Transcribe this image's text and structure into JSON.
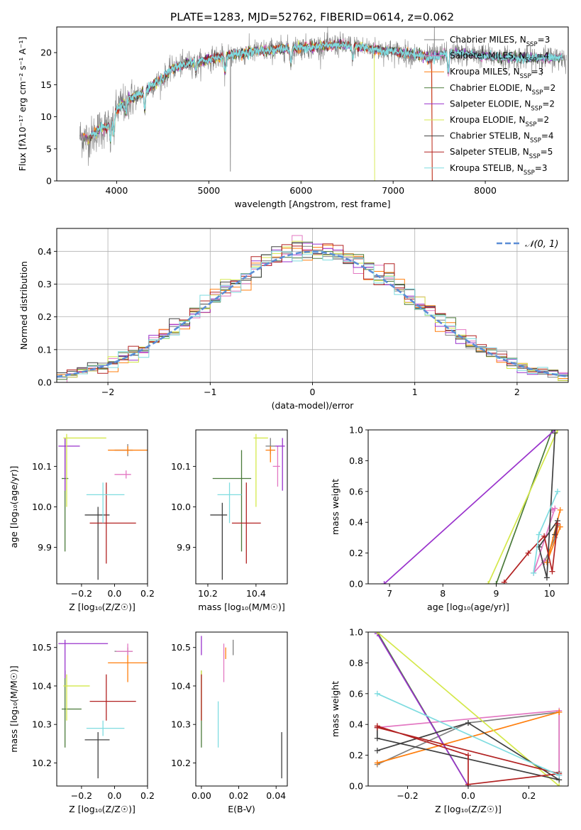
{
  "figure": {
    "title": "PLATE=1283, MJD=52762, FIBERID=0614, z=0.062"
  },
  "models": [
    {
      "lib": "Chabrier MILES",
      "nssp": "3",
      "color": "#808080"
    },
    {
      "lib": "Salpeter MILES",
      "nssp": "4",
      "color": "#e377c2"
    },
    {
      "lib": "Kroupa MILES",
      "nssp": "3",
      "color": "#ff7f0e"
    },
    {
      "lib": "Chabrier ELODIE",
      "nssp": "2",
      "color": "#4a7a3a"
    },
    {
      "lib": "Salpeter ELODIE",
      "nssp": "2",
      "color": "#9932cc"
    },
    {
      "lib": "Kroupa ELODIE",
      "nssp": "2",
      "color": "#d4e84a"
    },
    {
      "lib": "Chabrier STELIB",
      "nssp": "4",
      "color": "#404040"
    },
    {
      "lib": "Salpeter STELIB",
      "nssp": "5",
      "color": "#b22222"
    },
    {
      "lib": "Kroupa STELIB",
      "nssp": "3",
      "color": "#7fdce0"
    }
  ],
  "chart_data": [
    {
      "id": "spectrum",
      "type": "line",
      "xlabel": "wavelength [Angstrom, rest frame]",
      "ylabel": "Flux [fλ10⁻¹⁷ erg cm⁻² s⁻¹ A⁻¹]",
      "xlim": [
        3350,
        8900
      ],
      "ylim": [
        0,
        24
      ],
      "xticks": [
        "4000",
        "5000",
        "6000",
        "7000",
        "8000"
      ],
      "yticks": [
        "0",
        "5",
        "10",
        "15",
        "20"
      ],
      "grid": false,
      "legend": "right",
      "continuum": {
        "x": [
          3600,
          3700,
          3800,
          3900,
          4000,
          4100,
          4200,
          4300,
          4400,
          4500,
          4600,
          4700,
          4800,
          4900,
          5000,
          5200,
          5400,
          5600,
          5800,
          6000,
          6200,
          6400,
          6600,
          6800,
          7000,
          7200,
          7400,
          7600,
          7800,
          8000,
          8200,
          8400,
          8600,
          8800
        ],
        "y": [
          7,
          6.5,
          8,
          8.5,
          11,
          12.5,
          13,
          14,
          15,
          16,
          17.5,
          18,
          18.5,
          18.5,
          19,
          19.5,
          20,
          20.3,
          20.6,
          20.8,
          21,
          21.2,
          21,
          20.5,
          20.2,
          19.8,
          19.2,
          20,
          19.8,
          19.5,
          19.2,
          19.2,
          19.2,
          19.2
        ]
      }
    },
    {
      "id": "residuals",
      "type": "histogram",
      "xlabel": "(data-model)/error",
      "ylabel": "Normed distribution",
      "xlim": [
        -2.5,
        2.5
      ],
      "ylim": [
        0,
        0.47
      ],
      "xticks": [
        "−2",
        "−1",
        "0",
        "1",
        "2"
      ],
      "yticks": [
        "0.0",
        "0.1",
        "0.2",
        "0.3",
        "0.4"
      ],
      "grid": true,
      "legend": "top-right",
      "reference": {
        "label": "𝒩(0, 1)",
        "mean": 0,
        "sigma": 1
      }
    },
    {
      "id": "age-vs-z",
      "type": "errorbar",
      "xlabel": "Z [log₁₀(Z/Z☉)]",
      "ylabel": "age  [log₁₀(age/yr)]",
      "xlim": [
        -0.35,
        0.2
      ],
      "ylim": [
        9.81,
        10.19
      ],
      "xticks": [
        "−0.2",
        "0.0",
        "0.2"
      ],
      "yticks": [
        "9.9",
        "10.0",
        "10.1"
      ],
      "points": [
        {
          "x": 0.08,
          "y": 10.14,
          "xerr": [
            0.08,
            0.03
          ],
          "yerr": [
            0.015,
            0.015
          ]
        },
        {
          "x": 0.07,
          "y": 10.08,
          "xerr": [
            0.07,
            0.03
          ],
          "yerr": [
            0.01,
            0.01
          ]
        },
        {
          "x": 0.08,
          "y": 10.14,
          "xerr": [
            0.12,
            0.12
          ],
          "yerr": [
            0.01,
            0.01
          ]
        },
        {
          "x": -0.3,
          "y": 10.07,
          "xerr": [
            0.02,
            0.02
          ],
          "yerr": [
            0.18,
            0.1
          ]
        },
        {
          "x": -0.3,
          "y": 10.15,
          "xerr": [
            0.04,
            0.09
          ],
          "yerr": [
            0.11,
            0.02
          ]
        },
        {
          "x": -0.29,
          "y": 10.17,
          "xerr": [
            0.02,
            0.24
          ],
          "yerr": [
            0.17,
            0.01
          ]
        },
        {
          "x": -0.1,
          "y": 9.98,
          "xerr": [
            0.08,
            0.07
          ],
          "yerr": [
            0.16,
            0.02
          ]
        },
        {
          "x": -0.05,
          "y": 9.96,
          "xerr": [
            0.1,
            0.18
          ],
          "yerr": [
            0.1,
            0.1
          ]
        },
        {
          "x": -0.07,
          "y": 10.03,
          "xerr": [
            0.1,
            0.13
          ],
          "yerr": [
            0.07,
            0.03
          ]
        }
      ]
    },
    {
      "id": "age-vs-mass",
      "type": "errorbar",
      "xlabel": "mass [log₁₀(M/M☉)]",
      "ylabel": "",
      "xlim": [
        10.15,
        10.53
      ],
      "ylim": [
        9.81,
        10.19
      ],
      "xticks": [
        "10.2",
        "10.4"
      ],
      "yticks": [
        "9.9",
        "10.0",
        "10.1"
      ],
      "points": [
        {
          "x": 10.46,
          "y": 10.15,
          "xerr": [
            0.02,
            0.02
          ],
          "yerr": [
            0.02,
            0.02
          ]
        },
        {
          "x": 10.49,
          "y": 10.1,
          "xerr": [
            0.02,
            0.01
          ],
          "yerr": [
            0.05,
            0.05
          ]
        },
        {
          "x": 10.46,
          "y": 10.14,
          "xerr": [
            0.02,
            0.02
          ],
          "yerr": [
            0.03,
            0.01
          ]
        },
        {
          "x": 10.34,
          "y": 10.07,
          "xerr": [
            0.12,
            0.04
          ],
          "yerr": [
            0.18,
            0.07
          ]
        },
        {
          "x": 10.51,
          "y": 10.15,
          "xerr": [
            0.03,
            0.01
          ],
          "yerr": [
            0.11,
            0.02
          ]
        },
        {
          "x": 10.4,
          "y": 10.17,
          "xerr": [
            0.01,
            0.05
          ],
          "yerr": [
            0.17,
            0.01
          ]
        },
        {
          "x": 10.26,
          "y": 9.98,
          "xerr": [
            0.05,
            0.02
          ],
          "yerr": [
            0.16,
            0.03
          ]
        },
        {
          "x": 10.36,
          "y": 9.96,
          "xerr": [
            0.06,
            0.06
          ],
          "yerr": [
            0.1,
            0.1
          ]
        },
        {
          "x": 10.29,
          "y": 10.03,
          "xerr": [
            0.05,
            0.05
          ],
          "yerr": [
            0.07,
            0.03
          ]
        }
      ]
    },
    {
      "id": "weight-vs-age",
      "type": "line",
      "xlabel": "age  [log₁₀(age/yr)]",
      "ylabel": "mass weight",
      "xlim": [
        6.6,
        10.35
      ],
      "ylim": [
        0,
        1
      ],
      "xticks": [
        "7",
        "8",
        "9",
        "10"
      ],
      "yticks": [
        "0.0",
        "0.2",
        "0.4",
        "0.6",
        "0.8",
        "1.0"
      ],
      "series": [
        {
          "x": [
            10.15,
            10.1,
            9.9
          ],
          "y": [
            0.38,
            0.3,
            0.14
          ]
        },
        {
          "x": [
            9.9,
            9.7,
            10.1,
            10.05
          ],
          "y": [
            0.15,
            0.07,
            0.49,
            0.48
          ]
        },
        {
          "x": [
            10.2,
            9.95,
            10.2
          ],
          "y": [
            0.48,
            0.14,
            0.37
          ]
        },
        {
          "x": [
            10.05,
            9.0
          ],
          "y": [
            1.0,
            0.0
          ]
        },
        {
          "x": [
            10.1,
            6.9
          ],
          "y": [
            1.0,
            0.0
          ]
        },
        {
          "x": [
            10.15,
            8.85
          ],
          "y": [
            1.0,
            0.0
          ]
        },
        {
          "x": [
            10.1,
            9.95,
            9.8,
            10.15,
            10.1
          ],
          "y": [
            0.98,
            0.04,
            0.24,
            0.41,
            0.32
          ]
        },
        {
          "x": [
            9.15,
            9.6,
            9.9,
            10.05,
            10.15
          ],
          "y": [
            0.01,
            0.2,
            0.31,
            0.08,
            0.39
          ]
        },
        {
          "x": [
            9.7,
            9.8,
            10.15
          ],
          "y": [
            0.07,
            0.32,
            0.6
          ]
        }
      ]
    },
    {
      "id": "mass-vs-z",
      "type": "errorbar",
      "xlabel": "Z [log₁₀(Z/Z☉)]",
      "ylabel": "mass [log₁₀(M/M☉)]",
      "xlim": [
        -0.35,
        0.2
      ],
      "ylim": [
        10.14,
        10.54
      ],
      "xticks": [
        "−0.2",
        "0.0",
        "0.2"
      ],
      "yticks": [
        "10.2",
        "10.3",
        "10.4",
        "10.5"
      ],
      "points": [
        {
          "x": 0.08,
          "y": 10.49,
          "xerr": [
            0.08,
            0.03
          ],
          "yerr": [
            0.01,
            0.01
          ]
        },
        {
          "x": 0.08,
          "y": 10.49,
          "xerr": [
            0.07,
            0.03
          ],
          "yerr": [
            0.01,
            0.02
          ]
        },
        {
          "x": 0.08,
          "y": 10.46,
          "xerr": [
            0.12,
            0.12
          ],
          "yerr": [
            0.05,
            0.02
          ]
        },
        {
          "x": -0.3,
          "y": 10.34,
          "xerr": [
            0.02,
            0.1
          ],
          "yerr": [
            0.1,
            0.1
          ]
        },
        {
          "x": -0.3,
          "y": 10.51,
          "xerr": [
            0.04,
            0.26
          ],
          "yerr": [
            0.09,
            0.01
          ]
        },
        {
          "x": -0.29,
          "y": 10.4,
          "xerr": [
            0.02,
            0.14
          ],
          "yerr": [
            0.09,
            0.03
          ]
        },
        {
          "x": -0.1,
          "y": 10.26,
          "xerr": [
            0.08,
            0.07
          ],
          "yerr": [
            0.1,
            0.02
          ]
        },
        {
          "x": -0.05,
          "y": 10.36,
          "xerr": [
            0.1,
            0.18
          ],
          "yerr": [
            0.05,
            0.07
          ]
        },
        {
          "x": -0.07,
          "y": 10.29,
          "xerr": [
            0.1,
            0.13
          ],
          "yerr": [
            0.02,
            0.02
          ]
        }
      ]
    },
    {
      "id": "mass-vs-ebv",
      "type": "errorbar",
      "xlabel": "E(B-V)",
      "ylabel": "",
      "xlim": [
        -0.003,
        0.046
      ],
      "ylim": [
        10.14,
        10.54
      ],
      "xticks": [
        "0.00",
        "0.02",
        "0.04"
      ],
      "yticks": [
        "10.2",
        "10.3",
        "10.4",
        "10.5"
      ],
      "points": [
        {
          "x": 0.017,
          "y": 10.49,
          "xerr": [
            0,
            0
          ],
          "yerr": [
            0.01,
            0.03
          ]
        },
        {
          "x": 0.012,
          "y": 10.46,
          "xerr": [
            0,
            0
          ],
          "yerr": [
            0.05,
            0.05
          ]
        },
        {
          "x": 0.013,
          "y": 10.48,
          "xerr": [
            0,
            0
          ],
          "yerr": [
            0.01,
            0.02
          ]
        },
        {
          "x": 0.0,
          "y": 10.34,
          "xerr": [
            0,
            0
          ],
          "yerr": [
            0.1,
            0.1
          ]
        },
        {
          "x": 0.0,
          "y": 10.51,
          "xerr": [
            0,
            0
          ],
          "yerr": [
            0.03,
            0.02
          ]
        },
        {
          "x": 0.0,
          "y": 10.4,
          "xerr": [
            0,
            0
          ],
          "yerr": [
            0.09,
            0.04
          ]
        },
        {
          "x": 0.043,
          "y": 10.22,
          "xerr": [
            0,
            0
          ],
          "yerr": [
            0.06,
            0.06
          ]
        },
        {
          "x": 0.0,
          "y": 10.36,
          "xerr": [
            0,
            0
          ],
          "yerr": [
            0.05,
            0.07
          ]
        },
        {
          "x": 0.009,
          "y": 10.29,
          "xerr": [
            0,
            0
          ],
          "yerr": [
            0.05,
            0.07
          ]
        }
      ]
    },
    {
      "id": "weight-vs-z",
      "type": "line",
      "xlabel": "Z [log₁₀(Z/Z☉)]",
      "ylabel": "mass weight",
      "xlim": [
        -0.33,
        0.33
      ],
      "ylim": [
        0,
        1
      ],
      "xticks": [
        "−0.2",
        "0.0",
        "0.2"
      ],
      "yticks": [
        "0.0",
        "0.2",
        "0.4",
        "0.6",
        "0.8",
        "1.0"
      ],
      "series": [
        {
          "x": [
            -0.3,
            0.0,
            0.3,
            0.3
          ],
          "y": [
            0.14,
            0.41,
            0.48,
            0.09
          ]
        },
        {
          "x": [
            -0.3,
            0.3,
            0.3,
            0.3
          ],
          "y": [
            0.38,
            0.49,
            0.07,
            0.48
          ]
        },
        {
          "x": [
            -0.3,
            0.3,
            0.3
          ],
          "y": [
            0.15,
            0.48,
            0.48
          ]
        },
        {
          "x": [
            -0.3,
            0.0
          ],
          "y": [
            1.0,
            0.0
          ]
        },
        {
          "x": [
            -0.3,
            0.0
          ],
          "y": [
            0.99,
            0.0
          ]
        },
        {
          "x": [
            -0.3,
            0.3
          ],
          "y": [
            1.0,
            0.0
          ]
        },
        {
          "x": [
            -0.3,
            0.0,
            0.3,
            -0.3,
            -0.3
          ],
          "y": [
            0.23,
            0.41,
            0.04,
            0.31,
            0.38
          ]
        },
        {
          "x": [
            -0.3,
            0.0,
            0.0,
            0.3,
            -0.3
          ],
          "y": [
            0.39,
            0.2,
            0.01,
            0.08,
            0.38
          ]
        },
        {
          "x": [
            -0.3,
            0.3
          ],
          "y": [
            0.6,
            0.07
          ]
        }
      ]
    }
  ]
}
